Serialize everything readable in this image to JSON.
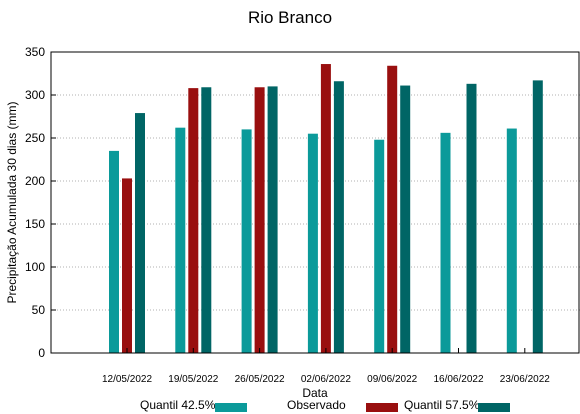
{
  "chart_data": {
    "type": "bar",
    "title": "Rio Branco",
    "xlabel": "Data",
    "ylabel": "Precipitação Acumulada 30 dias (mm)",
    "ylim": [
      0,
      350
    ],
    "yticks": [
      0,
      50,
      100,
      150,
      200,
      250,
      300,
      350
    ],
    "grid": true,
    "legend_position": "bottom",
    "categories": [
      "12/05/2022",
      "19/05/2022",
      "26/05/2022",
      "02/06/2022",
      "09/06/2022",
      "16/06/2022",
      "23/06/2022"
    ],
    "series": [
      {
        "name": "Quantil 42.5%",
        "color": "#0b9a9a",
        "values": [
          235,
          262,
          260,
          255,
          248,
          256,
          261
        ]
      },
      {
        "name": "Observado",
        "color": "#990f0f",
        "values": [
          203,
          308,
          309,
          336,
          334,
          null,
          null
        ]
      },
      {
        "name": "Quantil 57.5%",
        "color": "#006565",
        "values": [
          279,
          309,
          310,
          316,
          311,
          313,
          317
        ]
      }
    ]
  }
}
